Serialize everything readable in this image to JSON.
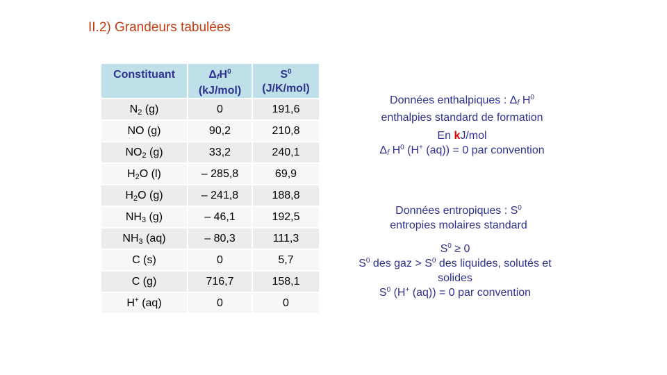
{
  "title": "II.2) Grandeurs tabulées",
  "table": {
    "headers": {
      "constituent": "Constituant",
      "dfh_unit": "(kJ/mol)",
      "s0_unit": "(J/K/mol)"
    },
    "rows": [
      {
        "species": "N",
        "sub": "2",
        "state": " (g)",
        "sup": "",
        "dfh": "0",
        "s0": "191,6"
      },
      {
        "species": "NO",
        "sub": "",
        "state": " (g)",
        "sup": "",
        "dfh": "90,2",
        "s0": "210,8"
      },
      {
        "species": "NO",
        "sub": "2",
        "state": " (g)",
        "sup": "",
        "dfh": "33,2",
        "s0": "240,1"
      },
      {
        "species": "H",
        "sub": "2",
        "state": "O (l)",
        "sup": "",
        "dfh": "– 285,8",
        "s0": "69,9"
      },
      {
        "species": "H",
        "sub": "2",
        "state": "O (g)",
        "sup": "",
        "dfh": "– 241,8",
        "s0": "188,8"
      },
      {
        "species": "NH",
        "sub": "3",
        "state": " (g)",
        "sup": "",
        "dfh": "– 46,1",
        "s0": "192,5"
      },
      {
        "species": "NH",
        "sub": "3",
        "state": " (aq)",
        "sup": "",
        "dfh": "– 80,3",
        "s0": "111,3"
      },
      {
        "species": "C (s)",
        "sub": "",
        "state": "",
        "sup": "",
        "dfh": "0",
        "s0": "5,7"
      },
      {
        "species": "C (g)",
        "sub": "",
        "state": "",
        "sup": "",
        "dfh": "716,7",
        "s0": "158,1"
      },
      {
        "species": "H",
        "sub": "",
        "state": " (aq)",
        "sup": "+",
        "dfh": "0",
        "s0": "0"
      }
    ]
  },
  "enthalpy_note": {
    "line1": "Données enthalpiques : Δ",
    "line2": "enthalpies standard de formation",
    "unit_pre": "En ",
    "unit_k": "k",
    "unit_post": "J/mol",
    "convention_post": " (aq)) = 0 par convention"
  },
  "entropy_note": {
    "line1": "Données entropiques : S",
    "line2": "entropies molaires standard",
    "line3_post": " ≥ 0",
    "line4_mid": " des gaz > S",
    "line4_post": " des liquides, solutés et",
    "line5": "solides",
    "line6_post": " (aq)) = 0 par convention"
  }
}
